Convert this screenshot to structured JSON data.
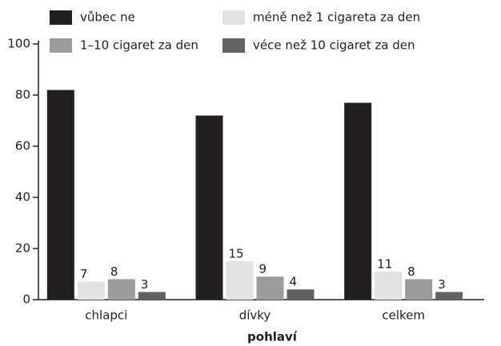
{
  "chart_data": {
    "type": "bar",
    "x_label": "pohlaví",
    "categories": [
      "chlapci",
      "dívky",
      "celkem"
    ],
    "series": [
      {
        "name": "vůbec ne",
        "color": "#231f20",
        "values": [
          82,
          72,
          77
        ]
      },
      {
        "name": "méně než 1 cigareta za den",
        "color": "#e2e2e2",
        "values": [
          7,
          15,
          11
        ]
      },
      {
        "name": "1–10 cigaret za den",
        "color": "#9b9b9b",
        "values": [
          8,
          9,
          8
        ]
      },
      {
        "name": "véce než 10 cigaret za den",
        "color": "#626262",
        "values": [
          3,
          4,
          3
        ]
      }
    ],
    "ylim": [
      0,
      100
    ],
    "yticks": [
      0,
      20,
      40,
      60,
      80,
      100
    ],
    "grid": false
  }
}
